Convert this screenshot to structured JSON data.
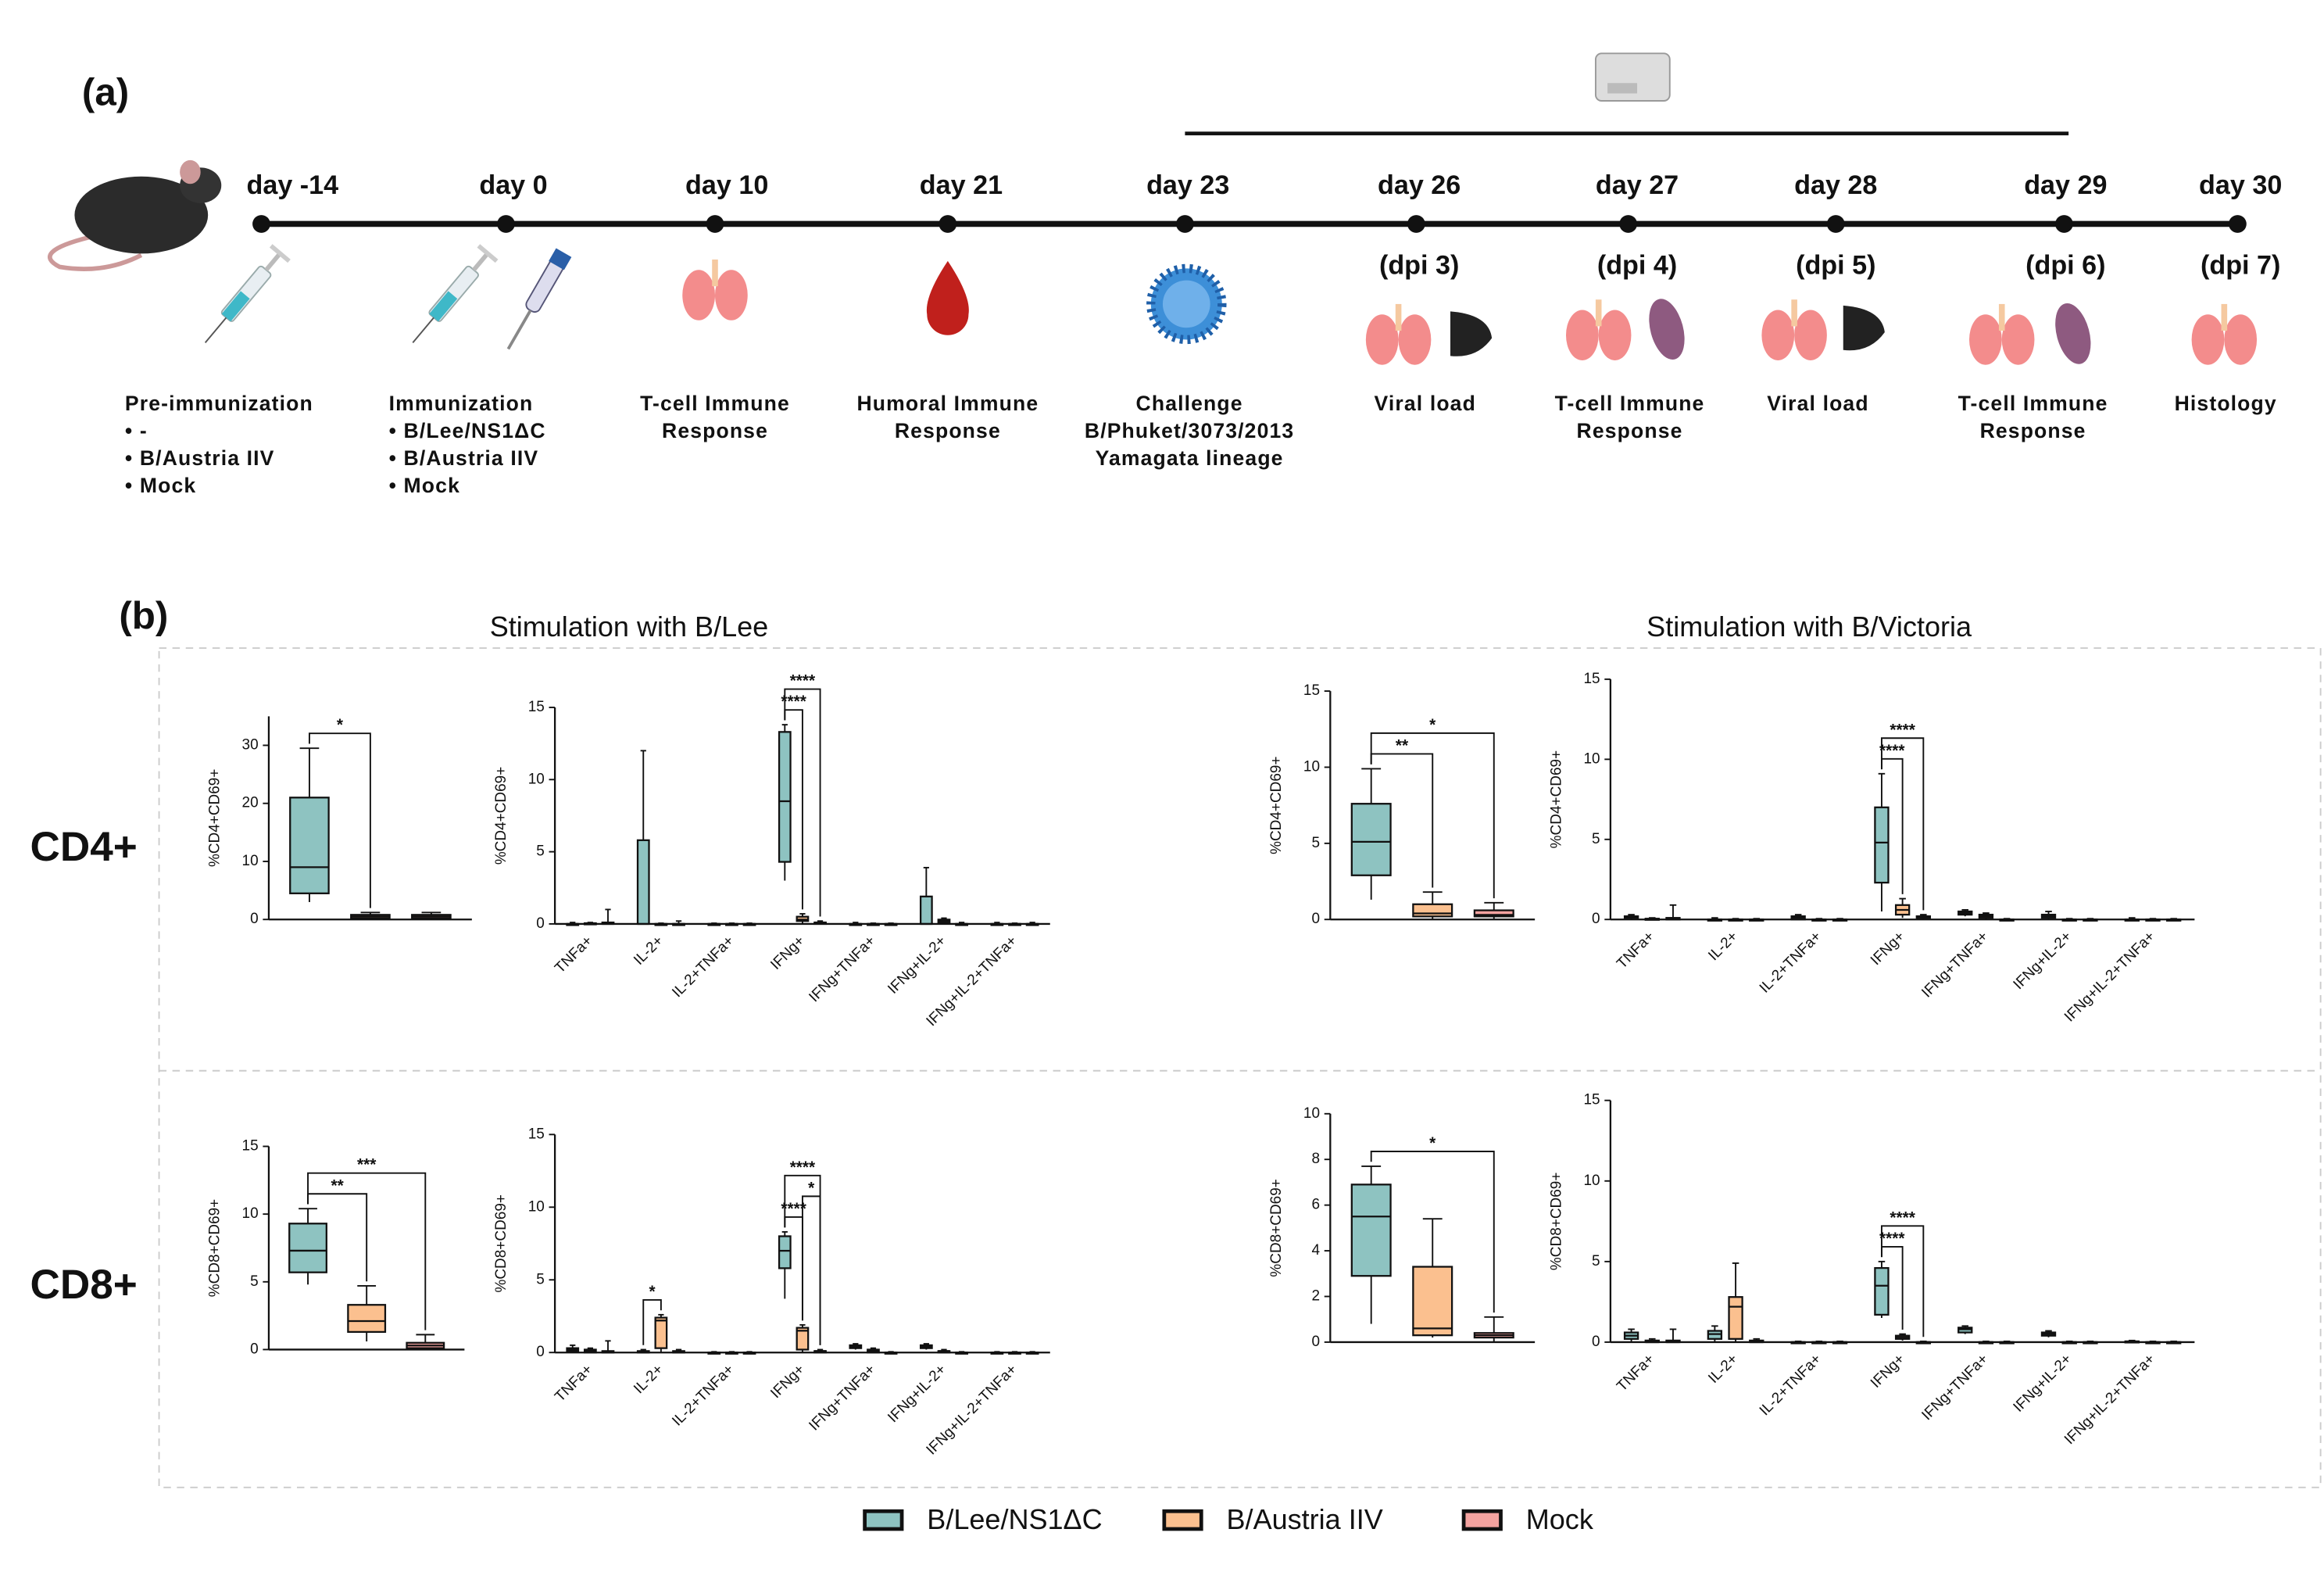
{
  "figure": {
    "panel_a": "(a)",
    "panel_b": "(b)",
    "timeline": [
      {
        "day": "day -14",
        "desc": [
          "Pre-immunization",
          "• -",
          "• B/Austria IIV",
          "• Mock"
        ]
      },
      {
        "day": "day 0",
        "desc": [
          "Immunization",
          "• B/Lee/NS1ΔC",
          "• B/Austria IIV",
          "• Mock"
        ]
      },
      {
        "day": "day 10",
        "desc": [
          "T-cell Immune",
          "Response"
        ]
      },
      {
        "day": "day 21",
        "desc": [
          "Humoral  Immune",
          "Response"
        ]
      },
      {
        "day": "day 23",
        "desc": [
          "Challenge",
          "B/Phuket/3073/2013",
          "Yamagata lineage"
        ]
      },
      {
        "day": "day 26",
        "dpi": "(dpi 3)",
        "desc": [
          "Viral load"
        ]
      },
      {
        "day": "day 27",
        "dpi": "(dpi 4)",
        "desc": [
          "T-cell Immune",
          "Response"
        ]
      },
      {
        "day": "day 28",
        "dpi": "(dpi 5)",
        "desc": [
          "Viral load"
        ]
      },
      {
        "day": "day 29",
        "dpi": "(dpi 6)",
        "desc": [
          "T-cell Immune",
          "Response"
        ]
      },
      {
        "day": "day 30",
        "dpi": "(dpi 7)",
        "desc": [
          "Histology"
        ]
      }
    ],
    "row_labels": [
      "CD4+",
      "CD8+"
    ],
    "column_titles": [
      "Stimulation with B/Lee",
      "Stimulation with B/Victoria"
    ]
  },
  "chart_data": [
    {
      "type": "box",
      "ylabel": "%CD4+CD69+",
      "ylim": [
        0,
        35
      ],
      "yticks": [
        0,
        10,
        20,
        30
      ],
      "series": [
        {
          "name": "B/Lee/NS1ΔC",
          "color": "#8ec3c1",
          "values": [
            [
              3,
              4.5,
              9,
              21,
              29.5
            ]
          ]
        },
        {
          "name": "B/Austria IIV",
          "color": "#fbc08f",
          "values": [
            [
              0,
              0.2,
              0.5,
              0.8,
              1.2
            ]
          ]
        },
        {
          "name": "Mock",
          "color": "#f4a3a0",
          "values": [
            [
              0,
              0.2,
              0.5,
              0.8,
              1.2
            ]
          ]
        }
      ],
      "annotations": [
        {
          "text": "*",
          "category": 0,
          "pair": [
            0,
            1
          ]
        }
      ]
    },
    {
      "type": "box",
      "ylabel": "%CD4+CD69+",
      "ylim": [
        0,
        15
      ],
      "yticks": [
        0,
        5,
        10,
        15
      ],
      "categories": [
        "TNFa+",
        "IL-2+",
        "IL-2+TNFa+",
        "IFNg+",
        "IFNg+TNFa+",
        "IFNg+IL-2+",
        "IFNg+IL-2+TNFa+"
      ],
      "series": [
        {
          "color": "#8ec3c1",
          "values": [
            [
              0,
              0,
              0,
              0,
              0.1
            ],
            [
              0,
              0,
              0,
              5.8,
              12
            ],
            [
              0,
              0,
              0,
              0,
              0.05
            ],
            [
              3,
              4.3,
              8.5,
              13.3,
              13.8
            ],
            [
              0,
              0,
              0,
              0,
              0.1
            ],
            [
              0,
              0,
              0,
              1.9,
              3.9
            ],
            [
              0,
              0,
              0,
              0,
              0.1
            ]
          ]
        },
        {
          "color": "#fbc08f",
          "values": [
            [
              0,
              0,
              0,
              0.05,
              0.1
            ],
            [
              0,
              0,
              0,
              0,
              0.05
            ],
            [
              0,
              0,
              0,
              0,
              0.05
            ],
            [
              0,
              0.2,
              0.3,
              0.5,
              0.7
            ],
            [
              0,
              0,
              0,
              0,
              0.05
            ],
            [
              0,
              0.1,
              0.2,
              0.3,
              0.4
            ],
            [
              0,
              0,
              0,
              0,
              0.05
            ]
          ]
        },
        {
          "color": "#f4a3a0",
          "values": [
            [
              0,
              0,
              0,
              0.1,
              1
            ],
            [
              0,
              0,
              0,
              0,
              0.2
            ],
            [
              0,
              0,
              0,
              0,
              0.05
            ],
            [
              0,
              0,
              0.1,
              0.1,
              0.2
            ],
            [
              0,
              0,
              0,
              0,
              0.05
            ],
            [
              0,
              0,
              0,
              0,
              0.1
            ],
            [
              0,
              0,
              0,
              0,
              0.1
            ]
          ]
        }
      ],
      "annotations": [
        {
          "text": "****",
          "category": 3,
          "pair": [
            0,
            1
          ]
        },
        {
          "text": "****",
          "category": 3,
          "pair": [
            0,
            2
          ]
        }
      ]
    },
    {
      "type": "box",
      "ylabel": "%CD4+CD69+",
      "ylim": [
        0,
        15
      ],
      "yticks": [
        0,
        5,
        10,
        15
      ],
      "series": [
        {
          "color": "#8ec3c1",
          "values": [
            [
              1.3,
              2.9,
              5.1,
              7.6,
              9.9
            ]
          ]
        },
        {
          "color": "#fbc08f",
          "values": [
            [
              0,
              0.2,
              0.4,
              1,
              1.8
            ]
          ]
        },
        {
          "color": "#f4a3a0",
          "values": [
            [
              0,
              0.2,
              0.3,
              0.6,
              1.1
            ]
          ]
        }
      ],
      "annotations": [
        {
          "text": "**",
          "category": 0,
          "pair": [
            0,
            1
          ]
        },
        {
          "text": "*",
          "category": 0,
          "pair": [
            0,
            2
          ]
        }
      ]
    },
    {
      "type": "box",
      "ylabel": "%CD4+CD69+",
      "ylim": [
        0,
        15
      ],
      "yticks": [
        0,
        5,
        10,
        15
      ],
      "categories": [
        "TNFa+",
        "IL-2+",
        "IL-2+TNFa+",
        "IFNg+",
        "IFNg+TNFa+",
        "IFNg+IL-2+",
        "IFNg+IL-2+TNFa+"
      ],
      "series": [
        {
          "color": "#8ec3c1",
          "values": [
            [
              0,
              0.1,
              0.15,
              0.2,
              0.3
            ],
            [
              0,
              0,
              0,
              0,
              0.1
            ],
            [
              0,
              0,
              0.1,
              0.2,
              0.3
            ],
            [
              0.5,
              2.3,
              4.8,
              7,
              9.1
            ],
            [
              0.2,
              0.3,
              0.4,
              0.5,
              0.6
            ],
            [
              0,
              0.1,
              0.2,
              0.3,
              0.5
            ],
            [
              0,
              0,
              0,
              0,
              0.1
            ]
          ]
        },
        {
          "color": "#fbc08f",
          "values": [
            [
              0,
              0,
              0,
              0.05,
              0.1
            ],
            [
              0,
              0,
              0,
              0,
              0.05
            ],
            [
              0,
              0,
              0,
              0,
              0.05
            ],
            [
              0.1,
              0.3,
              0.6,
              0.9,
              1.3
            ],
            [
              0,
              0.1,
              0.2,
              0.3,
              0.4
            ],
            [
              0,
              0,
              0,
              0,
              0.05
            ],
            [
              0,
              0,
              0,
              0,
              0.05
            ]
          ]
        },
        {
          "color": "#f4a3a0",
          "values": [
            [
              0,
              0,
              0,
              0.1,
              0.9
            ],
            [
              0,
              0,
              0,
              0,
              0.05
            ],
            [
              0,
              0,
              0,
              0,
              0.05
            ],
            [
              0,
              0.1,
              0.1,
              0.2,
              0.3
            ],
            [
              0,
              0,
              0,
              0,
              0.05
            ],
            [
              0,
              0,
              0,
              0,
              0.05
            ],
            [
              0,
              0,
              0,
              0,
              0.05
            ]
          ]
        }
      ],
      "annotations": [
        {
          "text": "****",
          "category": 3,
          "pair": [
            0,
            1
          ]
        },
        {
          "text": "****",
          "category": 3,
          "pair": [
            0,
            2
          ]
        }
      ]
    },
    {
      "type": "box",
      "ylabel": "%CD8+CD69+",
      "ylim": [
        0,
        15
      ],
      "yticks": [
        0,
        5,
        10,
        15
      ],
      "series": [
        {
          "color": "#8ec3c1",
          "values": [
            [
              4.8,
              5.7,
              7.3,
              9.3,
              10.4
            ]
          ]
        },
        {
          "color": "#fbc08f",
          "values": [
            [
              0.6,
              1.3,
              2.1,
              3.3,
              4.7
            ]
          ]
        },
        {
          "color": "#f4a3a0",
          "values": [
            [
              0,
              0.1,
              0.3,
              0.5,
              1.1
            ]
          ]
        }
      ],
      "annotations": [
        {
          "text": "**",
          "category": 0,
          "pair": [
            0,
            1
          ]
        },
        {
          "text": "***",
          "category": 0,
          "pair": [
            0,
            2
          ]
        }
      ]
    },
    {
      "type": "box",
      "ylabel": "%CD8+CD69+",
      "ylim": [
        0,
        15
      ],
      "yticks": [
        0,
        5,
        10,
        15
      ],
      "categories": [
        "TNFa+",
        "IL-2+",
        "IL-2+TNFa+",
        "IFNg+",
        "IFNg+TNFa+",
        "IFNg+IL-2+",
        "IFNg+IL-2+TNFa+"
      ],
      "series": [
        {
          "color": "#8ec3c1",
          "values": [
            [
              0,
              0.1,
              0.2,
              0.3,
              0.5
            ],
            [
              0,
              0,
              0,
              0.1,
              0.2
            ],
            [
              0,
              0,
              0,
              0,
              0.05
            ],
            [
              3.7,
              5.8,
              7,
              8,
              8.3
            ],
            [
              0.2,
              0.3,
              0.4,
              0.5,
              0.6
            ],
            [
              0.2,
              0.3,
              0.4,
              0.5,
              0.6
            ],
            [
              0,
              0,
              0,
              0,
              0.05
            ]
          ]
        },
        {
          "color": "#fbc08f",
          "values": [
            [
              0,
              0,
              0.1,
              0.2,
              0.3
            ],
            [
              0,
              0.3,
              2.2,
              2.4,
              2.6
            ],
            [
              0,
              0,
              0,
              0,
              0.05
            ],
            [
              0,
              0.2,
              1.5,
              1.7,
              1.9
            ],
            [
              0,
              0,
              0.1,
              0.2,
              0.3
            ],
            [
              0,
              0,
              0.1,
              0.1,
              0.2
            ],
            [
              0,
              0,
              0,
              0,
              0.05
            ]
          ]
        },
        {
          "color": "#f4a3a0",
          "values": [
            [
              0,
              0,
              0,
              0.1,
              0.8
            ],
            [
              0,
              0,
              0,
              0.1,
              0.2
            ],
            [
              0,
              0,
              0,
              0,
              0.05
            ],
            [
              0,
              0,
              0.1,
              0.1,
              0.2
            ],
            [
              0,
              0,
              0,
              0,
              0.05
            ],
            [
              0,
              0,
              0,
              0,
              0.05
            ],
            [
              0,
              0,
              0,
              0,
              0.05
            ]
          ]
        }
      ],
      "annotations": [
        {
          "text": "*",
          "category": 1,
          "pair": [
            0,
            1
          ]
        },
        {
          "text": "****",
          "category": 3,
          "pair": [
            0,
            1
          ]
        },
        {
          "text": "*",
          "category": 3,
          "pair": [
            1,
            2
          ]
        },
        {
          "text": "****",
          "category": 3,
          "pair": [
            0,
            2
          ]
        }
      ]
    },
    {
      "type": "box",
      "ylabel": "%CD8+CD69+",
      "ylim": [
        0,
        10
      ],
      "yticks": [
        0,
        2,
        4,
        6,
        8,
        10
      ],
      "series": [
        {
          "color": "#8ec3c1",
          "values": [
            [
              0.8,
              2.9,
              5.5,
              6.9,
              7.7
            ]
          ]
        },
        {
          "color": "#fbc08f",
          "values": [
            [
              0.2,
              0.3,
              0.6,
              3.3,
              5.4
            ]
          ]
        },
        {
          "color": "#f4a3a0",
          "values": [
            [
              0,
              0.2,
              0.3,
              0.4,
              1.1
            ]
          ]
        }
      ],
      "annotations": [
        {
          "text": "*",
          "category": 0,
          "pair": [
            0,
            2
          ]
        }
      ]
    },
    {
      "type": "box",
      "ylabel": "%CD8+CD69+",
      "ylim": [
        0,
        15
      ],
      "yticks": [
        0,
        5,
        10,
        15
      ],
      "categories": [
        "TNFa+",
        "IL-2+",
        "IL-2+TNFa+",
        "IFNg+",
        "IFNg+TNFa+",
        "IFNg+IL-2+",
        "IFNg+IL-2+TNFa+"
      ],
      "series": [
        {
          "color": "#8ec3c1",
          "values": [
            [
              0,
              0.2,
              0.4,
              0.6,
              0.8
            ],
            [
              0,
              0.2,
              0.5,
              0.7,
              1
            ],
            [
              0,
              0,
              0,
              0,
              0.05
            ],
            [
              1.5,
              1.7,
              3.5,
              4.6,
              5
            ],
            [
              0.5,
              0.6,
              0.8,
              0.9,
              1
            ],
            [
              0.3,
              0.4,
              0.5,
              0.6,
              0.7
            ],
            [
              0,
              0,
              0,
              0.05,
              0.1
            ]
          ]
        },
        {
          "color": "#fbc08f",
          "values": [
            [
              0,
              0,
              0,
              0.1,
              0.2
            ],
            [
              0,
              0.2,
              2.2,
              2.8,
              4.9
            ],
            [
              0,
              0,
              0,
              0,
              0.05
            ],
            [
              0.1,
              0.2,
              0.3,
              0.4,
              0.5
            ],
            [
              0,
              0,
              0,
              0,
              0.05
            ],
            [
              0,
              0,
              0,
              0,
              0.05
            ],
            [
              0,
              0,
              0,
              0,
              0.05
            ]
          ]
        },
        {
          "color": "#f4a3a0",
          "values": [
            [
              0,
              0,
              0,
              0.1,
              0.8
            ],
            [
              0,
              0,
              0,
              0.1,
              0.2
            ],
            [
              0,
              0,
              0,
              0,
              0.05
            ],
            [
              0,
              0,
              0,
              0,
              0.05
            ],
            [
              0,
              0,
              0,
              0,
              0.05
            ],
            [
              0,
              0,
              0,
              0,
              0.05
            ],
            [
              0,
              0,
              0,
              0,
              0.05
            ]
          ]
        }
      ],
      "annotations": [
        {
          "text": "****",
          "category": 3,
          "pair": [
            0,
            1
          ]
        },
        {
          "text": "****",
          "category": 3,
          "pair": [
            0,
            2
          ]
        }
      ]
    }
  ]
}
